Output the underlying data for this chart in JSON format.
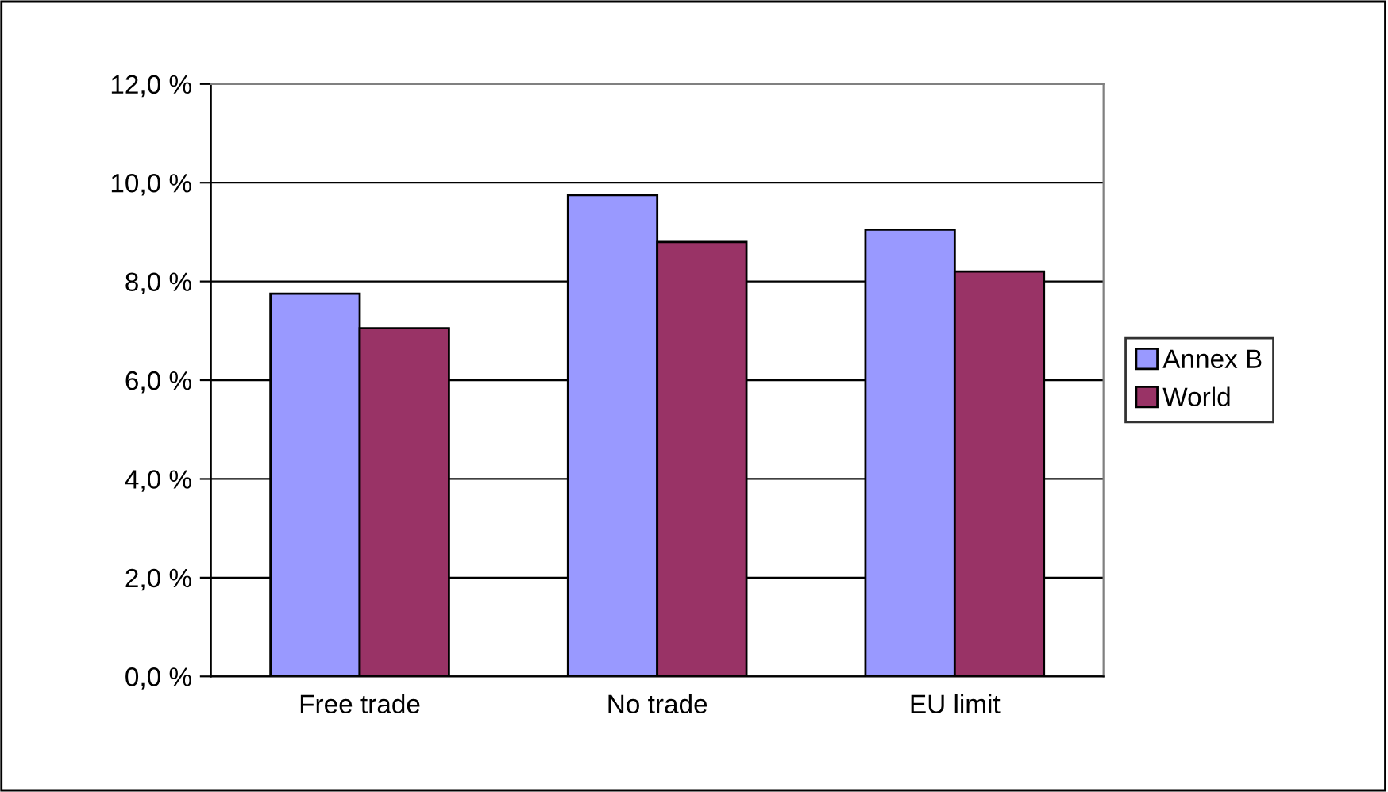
{
  "chart_data": {
    "type": "bar",
    "categories": [
      "Free trade",
      "No trade",
      "EU limit"
    ],
    "series": [
      {
        "name": "Annex B",
        "color": "#9999ff",
        "values": [
          7.75,
          9.75,
          9.05
        ]
      },
      {
        "name": "World",
        "color": "#993366",
        "values": [
          7.05,
          8.8,
          8.2
        ]
      }
    ],
    "ylim": [
      0,
      12
    ],
    "yticks": [
      {
        "value": 0,
        "label": "0,0 %"
      },
      {
        "value": 2,
        "label": "2,0 %"
      },
      {
        "value": 4,
        "label": "4,0 %"
      },
      {
        "value": 6,
        "label": "6,0 %"
      },
      {
        "value": 8,
        "label": "8,0 %"
      },
      {
        "value": 10,
        "label": "10,0 %"
      },
      {
        "value": 12,
        "label": "12,0 %"
      }
    ],
    "grid": "y",
    "legend": "right"
  }
}
